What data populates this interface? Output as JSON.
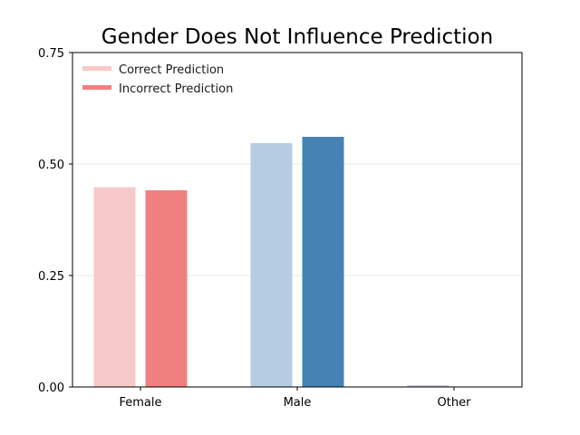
{
  "chart_data": {
    "type": "bar",
    "title": "Gender Does Not Influence Prediction",
    "xlabel": "",
    "ylabel": "",
    "categories": [
      "Female",
      "Male",
      "Other"
    ],
    "series": [
      {
        "name": "Correct Prediction",
        "values": [
          0.448,
          0.547,
          0.004
        ],
        "colors": [
          "#f8c9c9",
          "#b5cce3",
          "#c9c3e8"
        ]
      },
      {
        "name": "Incorrect Prediction",
        "values": [
          0.441,
          0.561,
          0.0
        ],
        "colors": [
          "#f08080",
          "#4682b4",
          "#9b8fd4"
        ]
      }
    ],
    "legend": {
      "placement": "top-left",
      "entries": [
        "Correct Prediction",
        "Incorrect Prediction"
      ],
      "swatch_colors": [
        "#f8c9c9",
        "#f08080"
      ]
    },
    "ylim": [
      0,
      0.75
    ],
    "yticks": [
      0.0,
      0.25,
      0.5,
      0.75
    ],
    "ytick_labels": [
      "0.00",
      "0.25",
      "0.50",
      "0.75"
    ],
    "grid": "horizontal, faint"
  }
}
